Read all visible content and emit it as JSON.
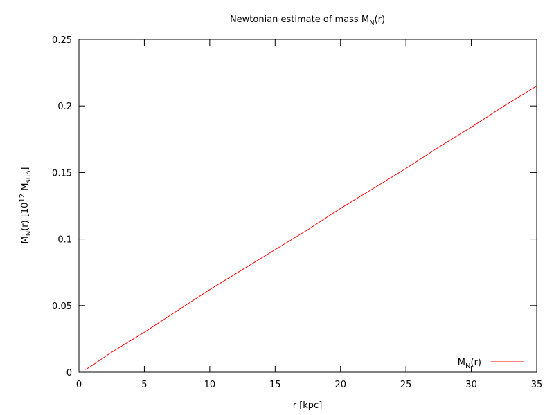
{
  "chart_data": {
    "type": "line",
    "title": [
      "Newtonian estimate of mass M",
      {
        "sub": "N"
      },
      "(r)"
    ],
    "x_label": "r [kpc]",
    "y_label": [
      "M",
      {
        "sub": "N"
      },
      "(r)  [10",
      {
        "sup": "12"
      },
      " M",
      {
        "sub": "sun"
      },
      "]"
    ],
    "x": [
      0.5,
      1,
      2.5,
      5,
      7.5,
      10,
      12.5,
      15,
      17.5,
      20,
      22.5,
      25,
      27.5,
      30,
      32.5,
      35
    ],
    "series": [
      {
        "name": [
          "M",
          {
            "sub": "N"
          },
          "(r)"
        ],
        "color": "#ff0000",
        "values": [
          0.002,
          0.005,
          0.015,
          0.03,
          0.046,
          0.062,
          0.077,
          0.092,
          0.107,
          0.123,
          0.138,
          0.153,
          0.169,
          0.184,
          0.2,
          0.215
        ]
      }
    ],
    "xlim": [
      0,
      35
    ],
    "xticks": [
      0,
      5,
      10,
      15,
      20,
      25,
      30,
      35
    ],
    "ylim": [
      0,
      0.25
    ],
    "yticks": [
      0,
      0.05,
      0.1,
      0.15,
      0.2,
      0.25
    ],
    "legend": "bottom-right"
  }
}
